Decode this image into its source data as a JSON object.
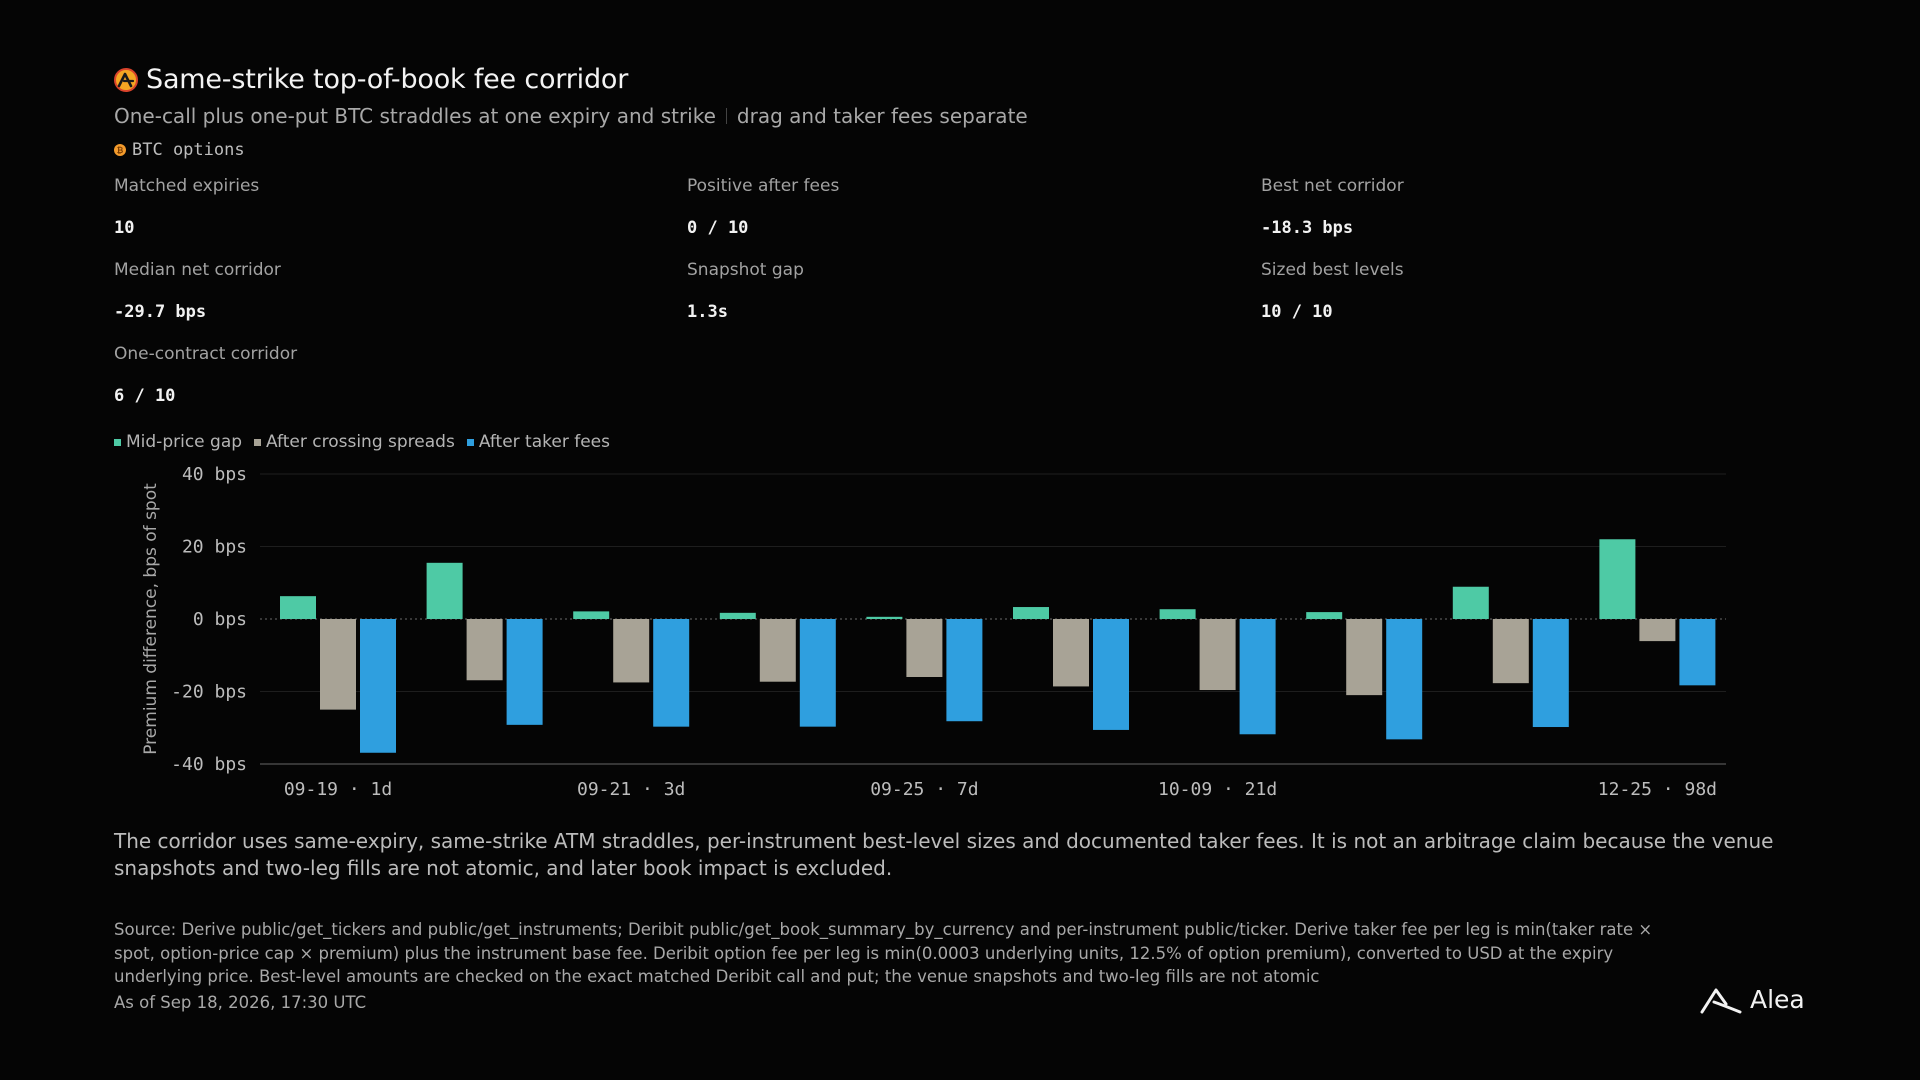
{
  "header": {
    "title": "Same-strike top-of-book fee corridor",
    "subtitle_main": "One-call plus one-put BTC straddles at one expiry and strike",
    "subtitle_secondary": "drag and taker fees separate",
    "tag": "BTC options"
  },
  "stats": [
    {
      "label": "Matched expiries",
      "value": "10"
    },
    {
      "label": "Positive after fees",
      "value": "0 / 10"
    },
    {
      "label": "Best net corridor",
      "value": "-18.3 bps"
    },
    {
      "label": "Median net corridor",
      "value": "-29.7 bps"
    },
    {
      "label": "Snapshot gap",
      "value": "1.3s"
    },
    {
      "label": "Sized best levels",
      "value": "10 / 10"
    },
    {
      "label": "One-contract corridor",
      "value": "6 / 10"
    }
  ],
  "legend": [
    {
      "label": "Mid-price gap",
      "color": "#4ecaa5"
    },
    {
      "label": "After crossing spreads",
      "color": "#a8a396"
    },
    {
      "label": "After taker fees",
      "color": "#2f9fdf"
    }
  ],
  "chart_data": {
    "type": "bar",
    "categories": [
      "09-19 · 1d",
      "",
      "09-21 · 3d",
      "",
      "09-25 · 7d",
      "",
      "10-09 · 21d",
      "",
      "",
      "12-25 · 98d"
    ],
    "series": [
      {
        "name": "Mid-price gap",
        "color": "#4ecaa5",
        "values": [
          6.3,
          15.5,
          2.1,
          1.7,
          0.6,
          3.3,
          2.7,
          1.9,
          8.9,
          22.0
        ]
      },
      {
        "name": "After crossing spreads",
        "color": "#a8a396",
        "values": [
          -25.0,
          -16.9,
          -17.5,
          -17.3,
          -16.0,
          -18.6,
          -19.6,
          -21.0,
          -17.7,
          -6.1
        ]
      },
      {
        "name": "After taker fees",
        "color": "#2f9fdf",
        "values": [
          -36.9,
          -29.2,
          -29.7,
          -29.7,
          -28.2,
          -30.6,
          -31.8,
          -33.2,
          -29.8,
          -18.3
        ]
      }
    ],
    "ylabel": "Premium difference, bps of spot",
    "yticks": [
      "40 bps",
      "20 bps",
      "0 bps",
      "-20 bps",
      "-40 bps"
    ],
    "ytick_values": [
      40,
      20,
      0,
      -20,
      -40
    ],
    "ylim": [
      -40,
      40
    ],
    "grid": true
  },
  "footer": {
    "note": "The corridor uses same-expiry, same-strike ATM straddles, per-instrument best-level sizes and documented taker fees. It is not an arbitrage claim because the venue snapshots and two-leg fills are not atomic, and later book impact is excluded.",
    "source": "Source: Derive public/get_tickers and public/get_instruments; Deribit public/get_book_summary_by_currency and per-instrument public/ticker. Derive taker fee per leg is min(taker rate × spot, option-price cap × premium) plus the instrument base fee. Deribit option fee per leg is min(0.0003 underlying units, 12.5% of option premium), converted to USD at the expiry underlying price. Best-level amounts are checked on the exact matched Deribit call and put; the venue snapshots and two-leg fills are not atomic",
    "as_of": "As of Sep 18, 2026, 17:30 UTC",
    "brand": "Alea"
  }
}
